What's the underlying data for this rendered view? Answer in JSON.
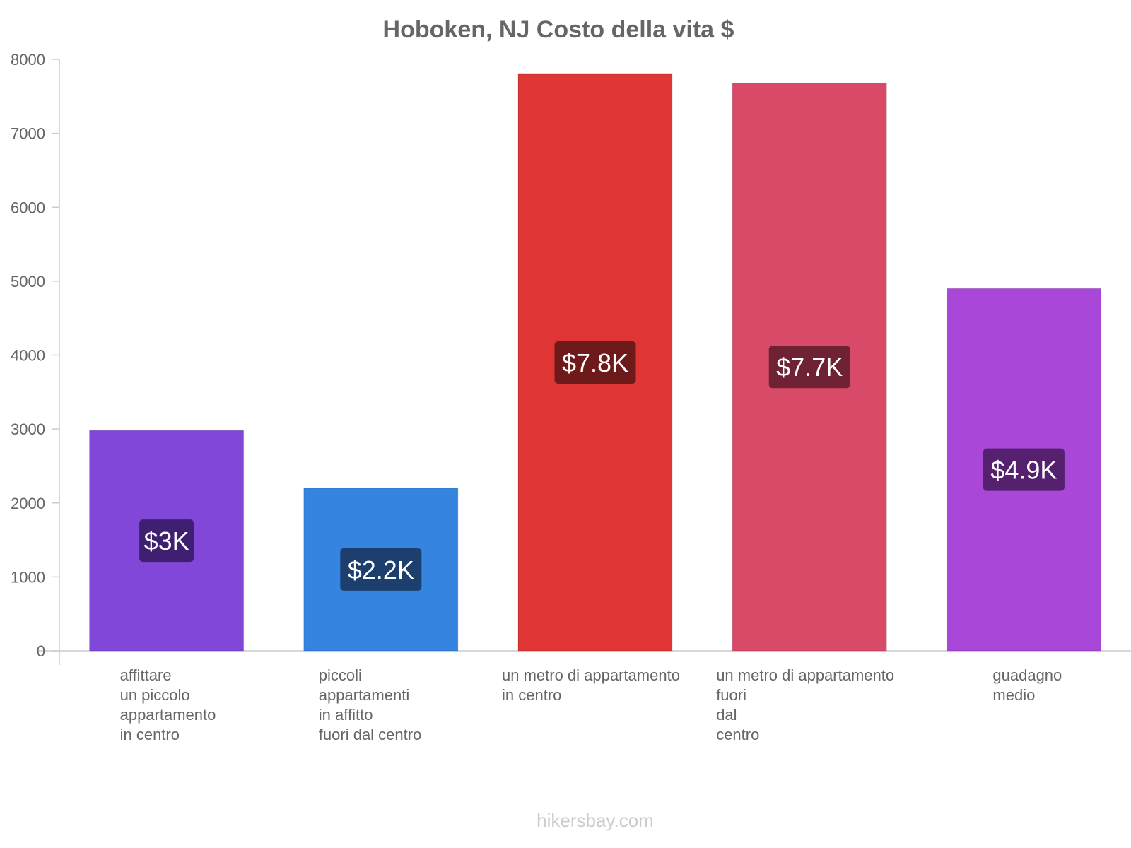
{
  "chart_data": {
    "type": "bar",
    "title": "Hoboken, NJ Costo della vita $",
    "xlabel": "",
    "ylabel": "",
    "ylim": [
      0,
      8000
    ],
    "yticks": [
      0,
      1000,
      2000,
      3000,
      4000,
      5000,
      6000,
      7000,
      8000
    ],
    "grid": false,
    "categories": [
      [
        "affittare",
        "un piccolo",
        "appartamento",
        "in centro"
      ],
      [
        "piccoli",
        "appartamenti",
        "in affitto",
        "fuori dal centro"
      ],
      [
        "un metro di appartamento",
        "in centro"
      ],
      [
        "un metro di appartamento",
        "fuori",
        "dal",
        "centro"
      ],
      [
        "guadagno",
        "medio"
      ]
    ],
    "values": [
      2980,
      2200,
      7800,
      7680,
      4900
    ],
    "data_labels": [
      "$3K",
      "$2.2K",
      "$7.8K",
      "$7.7K",
      "$4.9K"
    ],
    "colors": [
      "#8047d8",
      "#3584e0",
      "#e03535",
      "#d94a68",
      "#a847d8"
    ],
    "label_bg_colors": [
      "#3f2070",
      "#1c3f6e",
      "#6e1a1a",
      "#6e2233",
      "#55206e"
    ]
  },
  "watermark": "hikersbay.com"
}
